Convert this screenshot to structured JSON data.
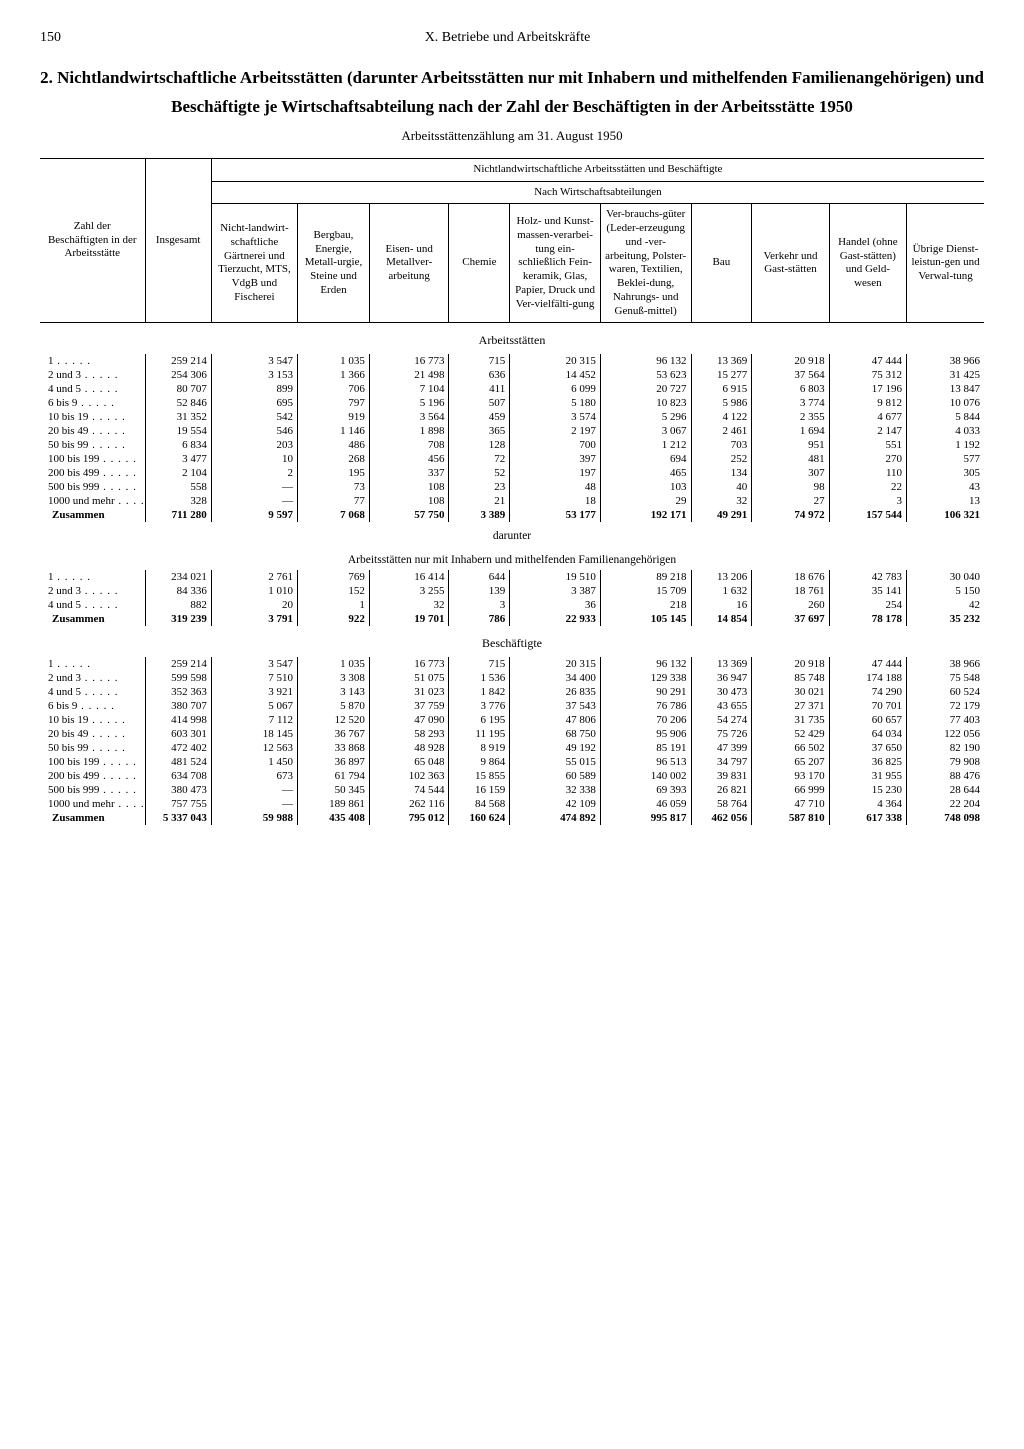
{
  "page_number": "150",
  "running_head": "X. Betriebe und Arbeitskräfte",
  "title": "2. Nichtlandwirtschaftliche Arbeitsstätten (darunter Arbeitsstätten nur mit Inhabern und mithelfenden Familienangehörigen) und Beschäftigte je Wirtschaftsabteilung nach der Zahl der Beschäftigten in der Arbeitsstätte 1950",
  "subtitle": "Arbeitsstättenzählung am 31. August 1950",
  "header_group_top": "Nichtlandwirtschaftliche Arbeitsstätten und Beschäftigte",
  "header_group_sub": "Nach Wirtschaftsabteilungen",
  "stub_header": "Zahl der Beschäftigten in der Arbeitsstätte",
  "col_insgesamt": "Insgesamt",
  "cols": [
    "Nicht-landwirt-schaftliche Gärtnerei und Tierzucht, MTS, VdgB und Fischerei",
    "Bergbau, Energie, Metall-urgie, Steine und Erden",
    "Eisen- und Metallver-arbeitung",
    "Chemie",
    "Holz- und Kunst-massen-verarbei-tung ein-schließlich Fein-keramik, Glas, Papier, Druck und Ver-vielfälti-gung",
    "Ver-brauchs-güter (Leder-erzeugung und -ver-arbeitung, Polster-waren, Textilien, Beklei-dung, Nahrungs- und Genuß-mittel)",
    "Bau",
    "Verkehr und Gast-stätten",
    "Handel (ohne Gast-stätten) und Geld-wesen",
    "Übrige Dienst-leistun-gen und Verwal-tung"
  ],
  "section1": "Arbeitsstätten",
  "section1_sub_a": "darunter",
  "section1_sub_b": "Arbeitsstätten nur mit Inhabern und mithelfenden Familienangehörigen",
  "section2": "Beschäftigte",
  "labels": {
    "r1": "1",
    "r2": "2 und  3",
    "r3": "4 und  5",
    "r4": "6 bis   9",
    "r5": "10 bis  19",
    "r6": "20 bis  49",
    "r7": "50 bis  99",
    "r8": "100 bis 199",
    "r9": "200 bis 499",
    "r10": "500 bis 999",
    "r11": "1000 und mehr",
    "sum": "Zusammen",
    "fr1": "1",
    "fr2": "2 und 3",
    "fr3": "4 und 5"
  },
  "arbeitsstaetten": {
    "r1": [
      "259 214",
      "3 547",
      "1 035",
      "16 773",
      "715",
      "20 315",
      "96 132",
      "13 369",
      "20 918",
      "47 444",
      "38 966"
    ],
    "r2": [
      "254 306",
      "3 153",
      "1 366",
      "21 498",
      "636",
      "14 452",
      "53 623",
      "15 277",
      "37 564",
      "75 312",
      "31 425"
    ],
    "r3": [
      "80 707",
      "899",
      "706",
      "7 104",
      "411",
      "6 099",
      "20 727",
      "6 915",
      "6 803",
      "17 196",
      "13 847"
    ],
    "r4": [
      "52 846",
      "695",
      "797",
      "5 196",
      "507",
      "5 180",
      "10 823",
      "5 986",
      "3 774",
      "9 812",
      "10 076"
    ],
    "r5": [
      "31 352",
      "542",
      "919",
      "3 564",
      "459",
      "3 574",
      "5 296",
      "4 122",
      "2 355",
      "4 677",
      "5 844"
    ],
    "r6": [
      "19 554",
      "546",
      "1 146",
      "1 898",
      "365",
      "2 197",
      "3 067",
      "2 461",
      "1 694",
      "2 147",
      "4 033"
    ],
    "r7": [
      "6 834",
      "203",
      "486",
      "708",
      "128",
      "700",
      "1 212",
      "703",
      "951",
      "551",
      "1 192"
    ],
    "r8": [
      "3 477",
      "10",
      "268",
      "456",
      "72",
      "397",
      "694",
      "252",
      "481",
      "270",
      "577"
    ],
    "r9": [
      "2 104",
      "2",
      "195",
      "337",
      "52",
      "197",
      "465",
      "134",
      "307",
      "110",
      "305"
    ],
    "r10": [
      "558",
      "—",
      "73",
      "108",
      "23",
      "48",
      "103",
      "40",
      "98",
      "22",
      "43"
    ],
    "r11": [
      "328",
      "—",
      "77",
      "108",
      "21",
      "18",
      "29",
      "32",
      "27",
      "3",
      "13"
    ],
    "sum": [
      "711 280",
      "9 597",
      "7 068",
      "57 750",
      "3 389",
      "53 177",
      "192 171",
      "49 291",
      "74 972",
      "157 544",
      "106 321"
    ]
  },
  "familien": {
    "r1": [
      "234 021",
      "2 761",
      "769",
      "16 414",
      "644",
      "19 510",
      "89 218",
      "13 206",
      "18 676",
      "42 783",
      "30 040"
    ],
    "r2": [
      "84 336",
      "1 010",
      "152",
      "3 255",
      "139",
      "3 387",
      "15 709",
      "1 632",
      "18 761",
      "35 141",
      "5 150"
    ],
    "r3": [
      "882",
      "20",
      "1",
      "32",
      "3",
      "36",
      "218",
      "16",
      "260",
      "254",
      "42"
    ],
    "sum": [
      "319 239",
      "3 791",
      "922",
      "19 701",
      "786",
      "22 933",
      "105 145",
      "14 854",
      "37 697",
      "78 178",
      "35 232"
    ]
  },
  "beschaeftigte": {
    "r1": [
      "259 214",
      "3 547",
      "1 035",
      "16 773",
      "715",
      "20 315",
      "96 132",
      "13 369",
      "20 918",
      "47 444",
      "38 966"
    ],
    "r2": [
      "599 598",
      "7 510",
      "3 308",
      "51 075",
      "1 536",
      "34 400",
      "129 338",
      "36 947",
      "85 748",
      "174 188",
      "75 548"
    ],
    "r3": [
      "352 363",
      "3 921",
      "3 143",
      "31 023",
      "1 842",
      "26 835",
      "90 291",
      "30 473",
      "30 021",
      "74 290",
      "60 524"
    ],
    "r4": [
      "380 707",
      "5 067",
      "5 870",
      "37 759",
      "3 776",
      "37 543",
      "76 786",
      "43 655",
      "27 371",
      "70 701",
      "72 179"
    ],
    "r5": [
      "414 998",
      "7 112",
      "12 520",
      "47 090",
      "6 195",
      "47 806",
      "70 206",
      "54 274",
      "31 735",
      "60 657",
      "77 403"
    ],
    "r6": [
      "603 301",
      "18 145",
      "36 767",
      "58 293",
      "11 195",
      "68 750",
      "95 906",
      "75 726",
      "52 429",
      "64 034",
      "122 056"
    ],
    "r7": [
      "472 402",
      "12 563",
      "33 868",
      "48 928",
      "8 919",
      "49 192",
      "85 191",
      "47 399",
      "66 502",
      "37 650",
      "82 190"
    ],
    "r8": [
      "481 524",
      "1 450",
      "36 897",
      "65 048",
      "9 864",
      "55 015",
      "96 513",
      "34 797",
      "65 207",
      "36 825",
      "79 908"
    ],
    "r9": [
      "634 708",
      "673",
      "61 794",
      "102 363",
      "15 855",
      "60 589",
      "140 002",
      "39 831",
      "93 170",
      "31 955",
      "88 476"
    ],
    "r10": [
      "380 473",
      "—",
      "50 345",
      "74 544",
      "16 159",
      "32 338",
      "69 393",
      "26 821",
      "66 999",
      "15 230",
      "28 644"
    ],
    "r11": [
      "757 755",
      "—",
      "189 861",
      "262 116",
      "84 568",
      "42 109",
      "46 059",
      "58 764",
      "47 710",
      "4 364",
      "22 204"
    ],
    "sum": [
      "5 337 043",
      "59 988",
      "435 408",
      "795 012",
      "160 624",
      "474 892",
      "995 817",
      "462 056",
      "587 810",
      "617 338",
      "748 098"
    ]
  }
}
